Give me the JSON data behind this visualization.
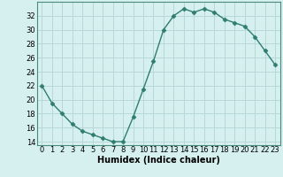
{
  "x": [
    0,
    1,
    2,
    3,
    4,
    5,
    6,
    7,
    8,
    9,
    10,
    11,
    12,
    13,
    14,
    15,
    16,
    17,
    18,
    19,
    20,
    21,
    22,
    23
  ],
  "y": [
    22,
    19.5,
    18,
    16.5,
    15.5,
    15,
    14.5,
    14,
    14,
    17.5,
    21.5,
    25.5,
    30,
    32,
    33,
    32.5,
    33,
    32.5,
    31.5,
    31,
    30.5,
    29,
    27,
    25
  ],
  "xlabel": "Humidex (Indice chaleur)",
  "xlim": [
    -0.5,
    23.5
  ],
  "ylim": [
    13.5,
    34
  ],
  "yticks": [
    14,
    16,
    18,
    20,
    22,
    24,
    26,
    28,
    30,
    32
  ],
  "xticks": [
    0,
    1,
    2,
    3,
    4,
    5,
    6,
    7,
    8,
    9,
    10,
    11,
    12,
    13,
    14,
    15,
    16,
    17,
    18,
    19,
    20,
    21,
    22,
    23
  ],
  "line_color": "#2e7d6e",
  "marker": "D",
  "marker_size": 2.5,
  "background_color": "#d6f0f0",
  "grid_color": "#b8d8d8",
  "axis_fontsize": 7,
  "tick_fontsize": 6
}
